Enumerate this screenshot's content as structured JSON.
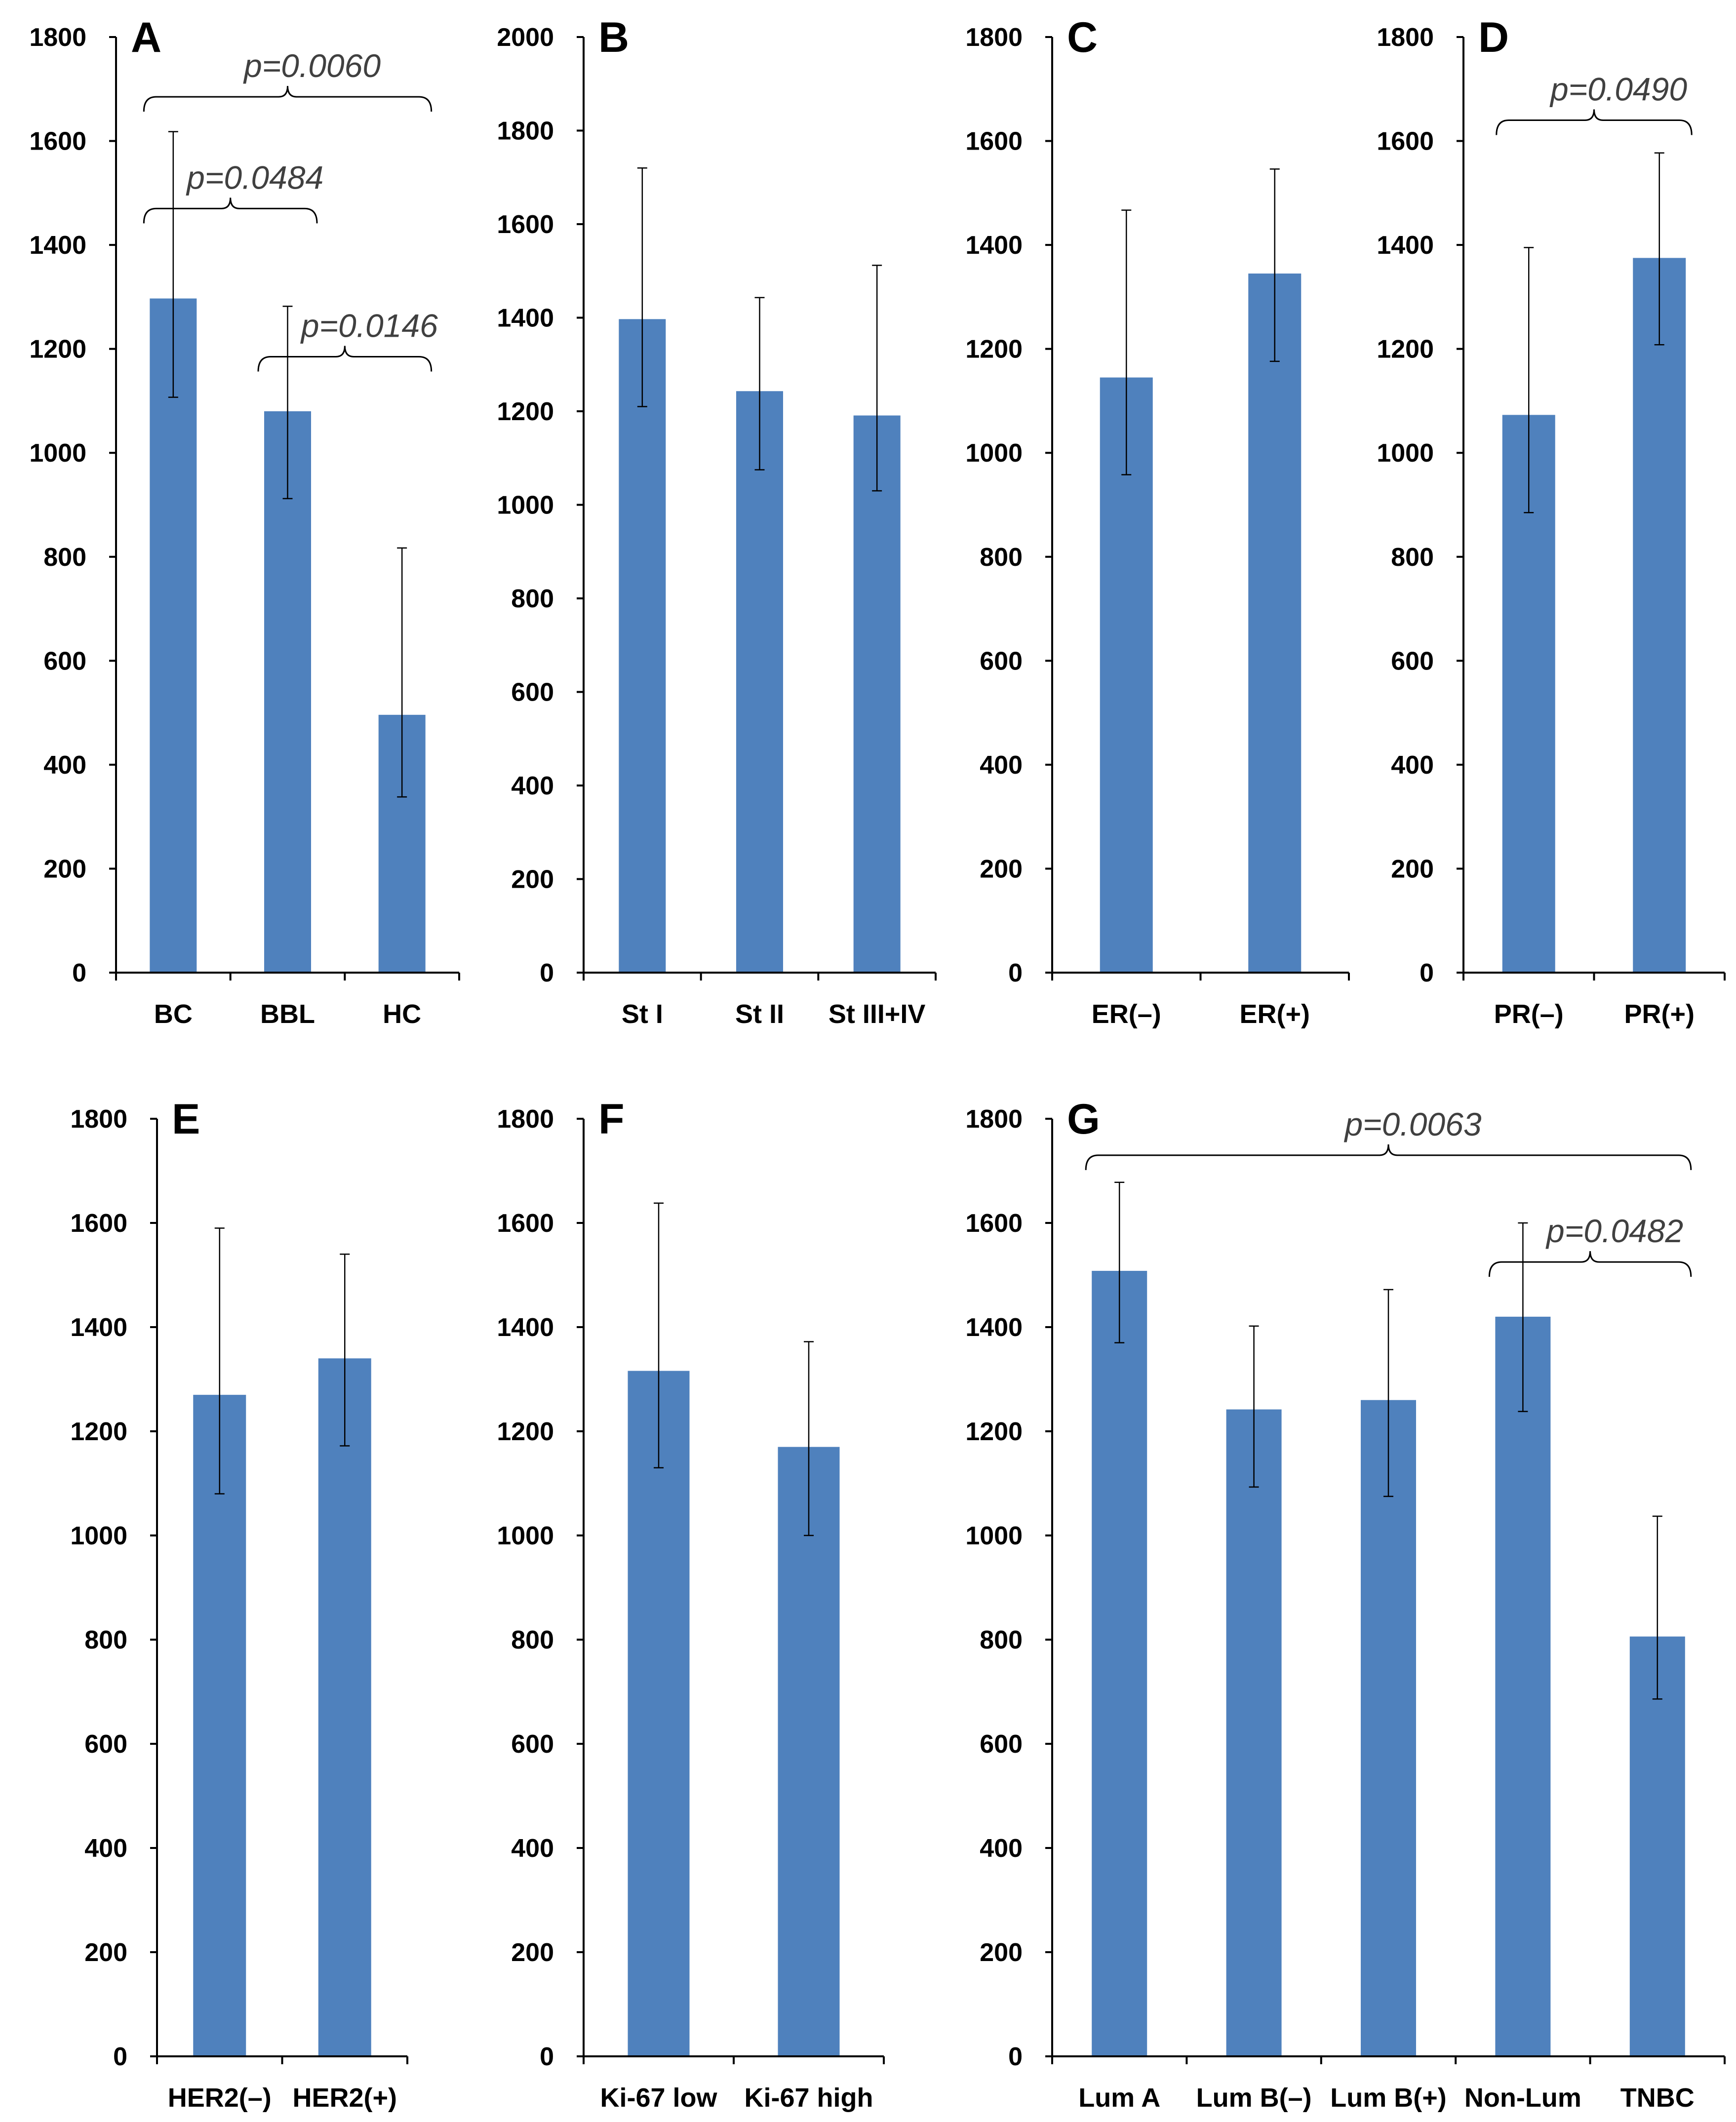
{
  "chart_data": [
    {
      "type": "bar",
      "panel": "A",
      "ylim": [
        0,
        1800
      ],
      "ticks": [
        0,
        200,
        400,
        600,
        800,
        1000,
        1200,
        1400,
        1600,
        1800
      ],
      "categories": [
        "BC",
        "BBL",
        "HC"
      ],
      "values": [
        1297,
        1080,
        496
      ],
      "err_low": [
        1107,
        912,
        338
      ],
      "err_high": [
        1618,
        1282,
        817
      ],
      "comparisons": [
        {
          "from": 0,
          "to": 2,
          "label": "p=0.0060",
          "level": 1685
        },
        {
          "from": 0,
          "to": 1,
          "label": "p=0.0484",
          "level": 1470
        },
        {
          "from": 1,
          "to": 2,
          "label": "p=0.0146",
          "level": 1185
        }
      ]
    },
    {
      "type": "bar",
      "panel": "B",
      "ylim": [
        0,
        2000
      ],
      "ticks": [
        0,
        200,
        400,
        600,
        800,
        1000,
        1200,
        1400,
        1600,
        1800,
        2000
      ],
      "categories": [
        "St I",
        "St II",
        "St III+IV"
      ],
      "values": [
        1397,
        1243,
        1191
      ],
      "err_low": [
        1210,
        1075,
        1030
      ],
      "err_high": [
        1720,
        1443,
        1512
      ],
      "comparisons": []
    },
    {
      "type": "bar",
      "panel": "C",
      "ylim": [
        0,
        1800
      ],
      "ticks": [
        0,
        200,
        400,
        600,
        800,
        1000,
        1200,
        1400,
        1600,
        1800
      ],
      "categories": [
        "ER(–)",
        "ER(+)"
      ],
      "values": [
        1145,
        1345
      ],
      "err_low": [
        958,
        1176
      ],
      "err_high": [
        1467,
        1546
      ],
      "comparisons": []
    },
    {
      "type": "bar",
      "panel": "D",
      "ylim": [
        0,
        1800
      ],
      "ticks": [
        0,
        200,
        400,
        600,
        800,
        1000,
        1200,
        1400,
        1600,
        1800
      ],
      "categories": [
        "PR(–)",
        "PR(+)"
      ],
      "values": [
        1073,
        1375
      ],
      "err_low": [
        885,
        1208
      ],
      "err_high": [
        1395,
        1577
      ],
      "comparisons": [
        {
          "from": 0,
          "to": 1,
          "label": "p=0.0490",
          "level": 1640
        }
      ]
    },
    {
      "type": "bar",
      "panel": "E",
      "ylim": [
        0,
        1800
      ],
      "ticks": [
        0,
        200,
        400,
        600,
        800,
        1000,
        1200,
        1400,
        1600,
        1800
      ],
      "categories": [
        "HER2(–)",
        "HER2(+)"
      ],
      "values": [
        1270,
        1340
      ],
      "err_low": [
        1080,
        1172
      ],
      "err_high": [
        1590,
        1540
      ],
      "comparisons": []
    },
    {
      "type": "bar",
      "panel": "F",
      "ylim": [
        0,
        1800
      ],
      "ticks": [
        0,
        200,
        400,
        600,
        800,
        1000,
        1200,
        1400,
        1600,
        1800
      ],
      "categories": [
        "Ki-67 low",
        "Ki-67 high"
      ],
      "values": [
        1316,
        1170
      ],
      "err_low": [
        1130,
        1000
      ],
      "err_high": [
        1638,
        1372
      ],
      "comparisons": []
    },
    {
      "type": "bar",
      "panel": "G",
      "ylim": [
        0,
        1800
      ],
      "ticks": [
        0,
        200,
        400,
        600,
        800,
        1000,
        1200,
        1400,
        1600,
        1800
      ],
      "categories": [
        "Lum A",
        "Lum B(–)",
        "Lum B(+)",
        "Non-Lum",
        "TNBC"
      ],
      "values": [
        1508,
        1242,
        1260,
        1420,
        806
      ],
      "err_low": [
        1370,
        1093,
        1075,
        1238,
        686
      ],
      "err_high": [
        1678,
        1402,
        1472,
        1600,
        1037
      ],
      "comparisons": [
        {
          "from": 0,
          "to": 4,
          "label": "p=0.0063",
          "level": 1730
        },
        {
          "from": 3,
          "to": 4,
          "label": "p=0.0482",
          "level": 1525
        }
      ]
    }
  ],
  "style": {
    "bar_color": "#4f81bd"
  }
}
